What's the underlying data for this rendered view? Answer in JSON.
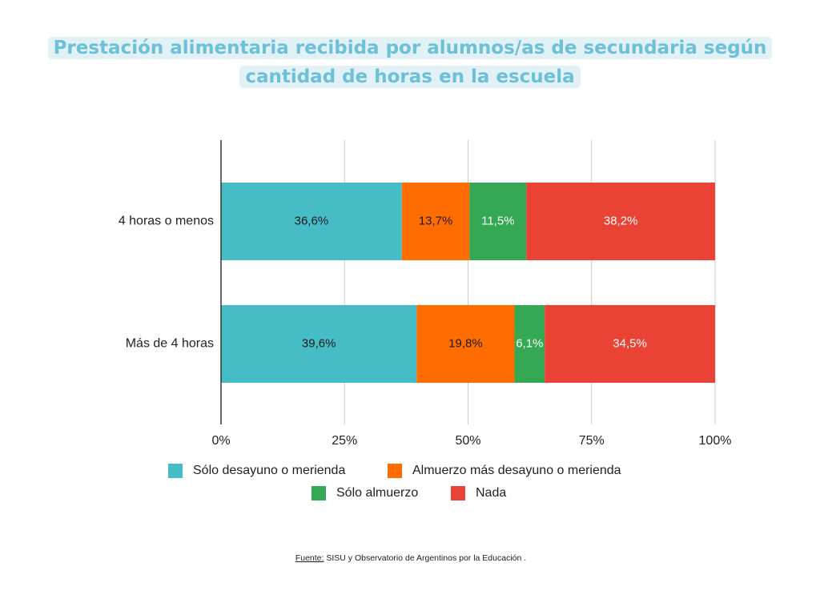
{
  "chart_data": {
    "type": "stacked_barh",
    "title": [
      "Prestación alimentaria recibida por alumnos/as de secundaria según",
      "cantidad de horas en la escuela"
    ],
    "categories": [
      "4 horas o menos",
      "Más de 4 horas"
    ],
    "series": [
      {
        "name": "Sólo desayuno o merienda",
        "color": "#46bdc6",
        "label_color": "#1a1a1a",
        "values": [
          36.6,
          39.6
        ],
        "value_labels": [
          "36,6%",
          "39,6%"
        ]
      },
      {
        "name": "Almuerzo más desayuno o merienda",
        "color": "#ff6d01",
        "label_color": "#1a1a1a",
        "values": [
          13.7,
          19.8
        ],
        "value_labels": [
          "13,7%",
          "19,8%"
        ]
      },
      {
        "name": "Sólo almuerzo",
        "color": "#34a853",
        "label_color": "#ffffff",
        "values": [
          11.5,
          6.1
        ],
        "value_labels": [
          "11,5%",
          "6,1%"
        ]
      },
      {
        "name": "Nada",
        "color": "#ea4335",
        "label_color": "#ffffff",
        "values": [
          38.2,
          34.5
        ],
        "value_labels": [
          "38,2%",
          "34,5%"
        ]
      }
    ],
    "xlim": [
      0,
      100
    ],
    "xticks": [
      {
        "value": 0,
        "label": "0%"
      },
      {
        "value": 25,
        "label": "25%"
      },
      {
        "value": 50,
        "label": "50%"
      },
      {
        "value": 75,
        "label": "75%"
      },
      {
        "value": 100,
        "label": "100%"
      }
    ],
    "grid": true,
    "legend": "bottom",
    "source_label": "Fuente:",
    "source": "SISU y Observatorio de Argentinos por la Educación ."
  }
}
